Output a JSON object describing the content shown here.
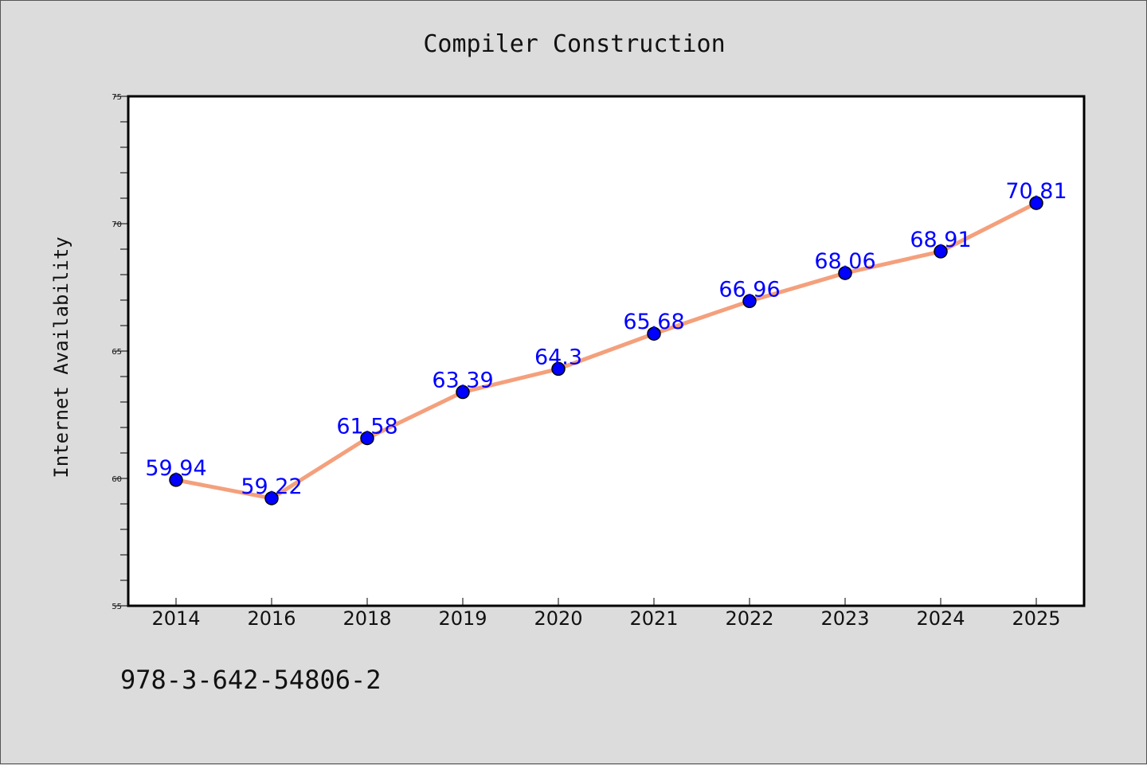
{
  "chart_data": {
    "type": "line",
    "title": "Compiler Construction",
    "xlabel": "",
    "ylabel": "Internet Availability",
    "categories": [
      "2014",
      "2016",
      "2018",
      "2019",
      "2020",
      "2021",
      "2022",
      "2023",
      "2024",
      "2025"
    ],
    "series": [
      {
        "values": [
          59.94,
          59.22,
          61.58,
          63.39,
          64.3,
          65.68,
          66.96,
          68.06,
          68.91,
          70.81
        ],
        "data_labels": [
          "59.94",
          "59.22",
          "61.58",
          "63.39",
          "64.3",
          "65.68",
          "66.96",
          "68.06",
          "68.91",
          "70.81"
        ]
      }
    ],
    "ylim": [
      55,
      75
    ],
    "yticks": [
      "55",
      "60",
      "65",
      "70",
      "75"
    ],
    "grid": false,
    "legend": "none",
    "line_color": "#f4a07c",
    "marker_color": "#0000ff",
    "label_color": "#0000ff",
    "footer": "978-3-642-54806-2"
  }
}
